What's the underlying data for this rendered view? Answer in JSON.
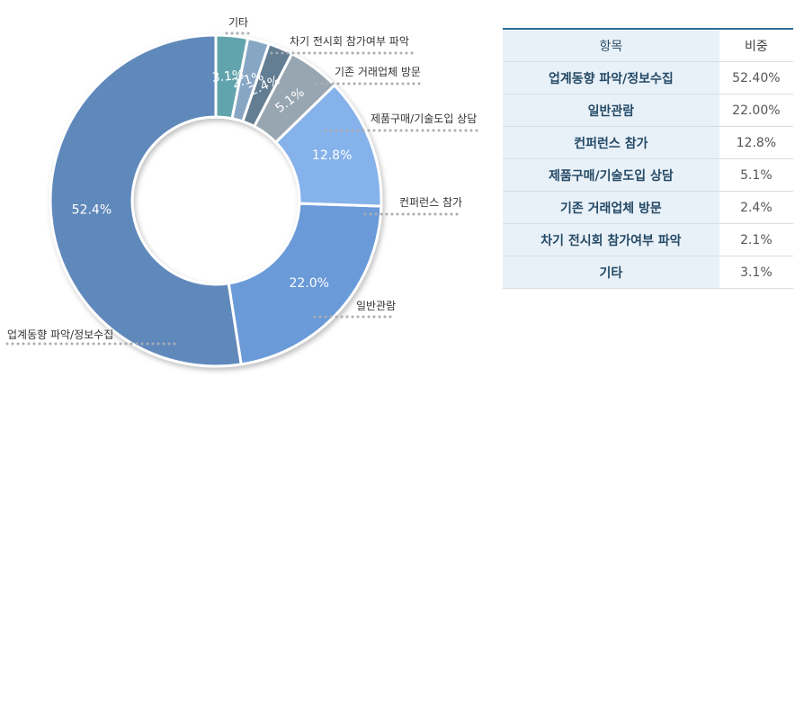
{
  "chart_data": {
    "type": "pie",
    "variant": "donut",
    "categories": [
      "업계동향 파악/정보수집",
      "일반관람",
      "컨퍼런스 참가",
      "제품구매/기술도입 상담",
      "기존 거래업체 방문",
      "차기 전시회 참가여부 파악",
      "기타"
    ],
    "values": [
      52.4,
      22.0,
      12.8,
      5.1,
      2.4,
      2.1,
      3.1
    ],
    "slice_labels": [
      "52.4%",
      "22.0%",
      "12.8%",
      "5.1%",
      "2.4%",
      "2.1%",
      "3.1%"
    ],
    "colors": [
      "#6189bb",
      "#6a9ad8",
      "#85b2ea",
      "#97a6b1",
      "#647d92",
      "#87a6c4",
      "#62a4ad"
    ],
    "start": "12 o'clock",
    "direction": "counter-clockwise"
  },
  "table": {
    "headers": [
      "항목",
      "비중"
    ],
    "rows": [
      {
        "item": "업계동향 파악/정보수집",
        "value": "52.40%"
      },
      {
        "item": "일반관람",
        "value": "22.00%"
      },
      {
        "item": "컨퍼런스 참가",
        "value": "12.8%"
      },
      {
        "item": "제품구매/기술도입 상담",
        "value": "5.1%"
      },
      {
        "item": "기존 거래업체 방문",
        "value": "2.4%"
      },
      {
        "item": "차기 전시회 참가여부 파악",
        "value": "2.1%"
      },
      {
        "item": "기타",
        "value": "3.1%"
      }
    ]
  }
}
